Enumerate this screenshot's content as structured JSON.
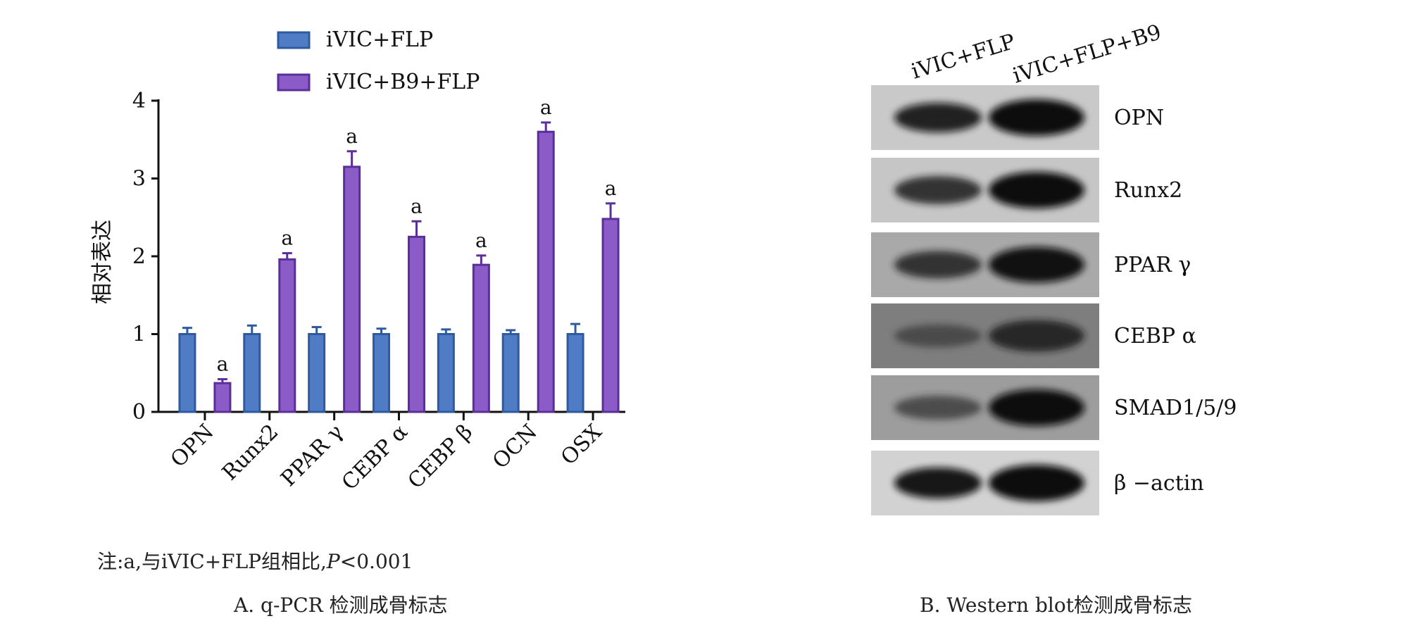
{
  "chart_data": {
    "type": "bar",
    "ylabel": "相对表达",
    "ylim": [
      0,
      4
    ],
    "yticks": [
      0,
      1,
      2,
      3,
      4
    ],
    "categories": [
      "OPN",
      "Runx2",
      "PPAR γ",
      "CEBP α",
      "CEBP β",
      "OCN",
      "OSX"
    ],
    "legend_position": "top",
    "series": [
      {
        "name": "iVIC+FLP",
        "color": "#4f7cc4",
        "values": [
          1.0,
          1.0,
          1.0,
          1.0,
          1.0,
          1.0,
          1.0
        ],
        "errors": [
          0.08,
          0.11,
          0.09,
          0.07,
          0.06,
          0.05,
          0.13
        ],
        "sig": [
          "",
          "",
          "",
          "",
          "",
          "",
          ""
        ]
      },
      {
        "name": "iVIC+B9+FLP",
        "color": "#8b5cc8",
        "values": [
          0.37,
          1.96,
          3.15,
          2.25,
          1.89,
          3.6,
          2.48
        ],
        "errors": [
          0.05,
          0.08,
          0.2,
          0.2,
          0.12,
          0.12,
          0.2
        ],
        "sig": [
          "a",
          "a",
          "a",
          "a",
          "a",
          "a",
          "a"
        ]
      }
    ]
  },
  "note": "注:a,与iVIC+FLP组相比,",
  "note_p": "P",
  "note_value": "<0.001",
  "caption_a": "A. q-PCR 检测成骨标志",
  "caption_b": "B. Western blot检测成骨标志",
  "blot": {
    "lanes": [
      "iVIC+FLP",
      "iVIC+FLP+B9"
    ],
    "rows": [
      {
        "label": "OPN",
        "bg": "#c9c9c9",
        "band1": 0.9,
        "band2": 1.0
      },
      {
        "label": "Runx2",
        "bg": "#c6c6c6",
        "band1": 0.8,
        "band2": 1.0
      },
      {
        "label": "PPAR γ",
        "bg": "#a9a9a9",
        "band1": 0.75,
        "band2": 0.95
      },
      {
        "label": "CEBP α",
        "bg": "#7e7e7e",
        "band1": 0.4,
        "band2": 0.7
      },
      {
        "label": "SMAD1/5/9",
        "bg": "#9d9d9d",
        "band1": 0.5,
        "band2": 1.0
      },
      {
        "label": "β −actin",
        "bg": "#d2d2d2",
        "band1": 1.0,
        "band2": 1.0
      }
    ]
  }
}
